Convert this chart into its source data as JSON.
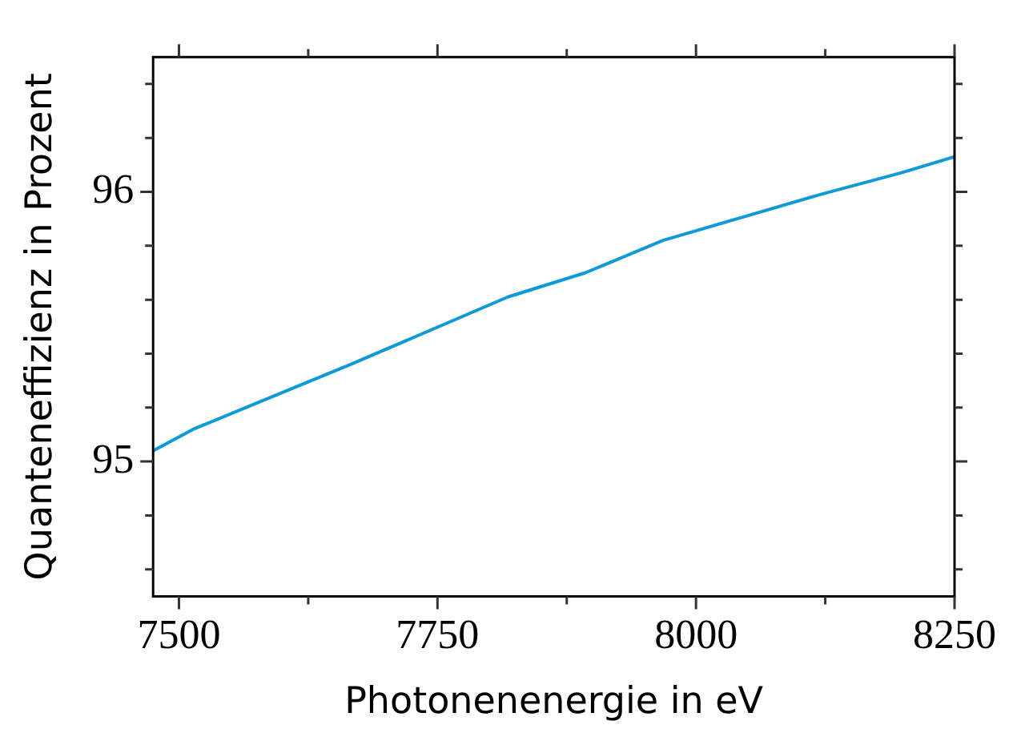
{
  "chart_data": {
    "type": "line",
    "xlabel": "Photonenenergie in eV",
    "ylabel": "Quanteneffizienz in Prozent",
    "x": [
      7475,
      7514,
      7666,
      7818,
      7893,
      7968,
      8120,
      8198,
      8250
    ],
    "series": [
      {
        "color": "#0d9ad9",
        "values": [
          95.04,
          95.12,
          95.36,
          95.61,
          95.7,
          95.82,
          95.99,
          96.07,
          96.13
        ]
      }
    ],
    "xlim": [
      7475,
      8250
    ],
    "ylim": [
      94.5,
      96.5
    ],
    "xticks": [
      7500,
      {
        "value": 7625,
        "label": null
      },
      7750,
      {
        "value": 7875,
        "label": null
      },
      8000,
      {
        "value": 8125,
        "label": null
      },
      8250
    ],
    "yticks": [
      {
        "value": 94.6,
        "label": null
      },
      {
        "value": 94.8,
        "label": null
      },
      95,
      {
        "value": 95.2,
        "label": null
      },
      {
        "value": 95.4,
        "label": null
      },
      {
        "value": 95.6,
        "label": null
      },
      {
        "value": 95.8,
        "label": null
      },
      96,
      {
        "value": 96.2,
        "label": null
      },
      {
        "value": 96.4,
        "label": null
      }
    ],
    "grid": false,
    "legend": false,
    "marker": "none",
    "line_style": "solid"
  }
}
